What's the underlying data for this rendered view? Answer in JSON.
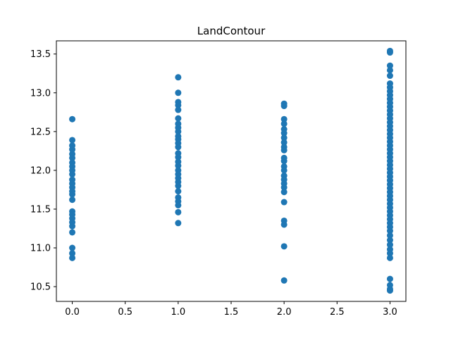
{
  "chart_data": {
    "type": "scatter",
    "title": "LandContour",
    "xlabel": "",
    "ylabel": "",
    "xlim": [
      -0.15,
      3.15
    ],
    "ylim": [
      10.31,
      13.67
    ],
    "grid": false,
    "color": "#1f77b4",
    "xticks": [
      {
        "value": 0.0,
        "label": "0.0"
      },
      {
        "value": 0.5,
        "label": "0.5"
      },
      {
        "value": 1.0,
        "label": "1.0"
      },
      {
        "value": 1.5,
        "label": "1.5"
      },
      {
        "value": 2.0,
        "label": "2.0"
      },
      {
        "value": 2.5,
        "label": "2.5"
      },
      {
        "value": 3.0,
        "label": "3.0"
      }
    ],
    "yticks": [
      {
        "value": 10.5,
        "label": "10.5"
      },
      {
        "value": 11.0,
        "label": "11.0"
      },
      {
        "value": 11.5,
        "label": "11.5"
      },
      {
        "value": 12.0,
        "label": "12.0"
      },
      {
        "value": 12.5,
        "label": "12.5"
      },
      {
        "value": 13.0,
        "label": "13.0"
      },
      {
        "value": 13.5,
        "label": "13.5"
      }
    ],
    "series": [
      {
        "values": [
          {
            "x": 0,
            "y": 12.66
          },
          {
            "x": 0,
            "y": 12.39
          },
          {
            "x": 0,
            "y": 12.32
          },
          {
            "x": 0,
            "y": 12.27
          },
          {
            "x": 0,
            "y": 12.21
          },
          {
            "x": 0,
            "y": 12.16
          },
          {
            "x": 0,
            "y": 12.1
          },
          {
            "x": 0,
            "y": 12.05
          },
          {
            "x": 0,
            "y": 12.0
          },
          {
            "x": 0,
            "y": 11.95
          },
          {
            "x": 0,
            "y": 11.88
          },
          {
            "x": 0,
            "y": 11.83
          },
          {
            "x": 0,
            "y": 11.78
          },
          {
            "x": 0,
            "y": 11.73
          },
          {
            "x": 0,
            "y": 11.69
          },
          {
            "x": 0,
            "y": 11.62
          },
          {
            "x": 0,
            "y": 11.47
          },
          {
            "x": 0,
            "y": 11.43
          },
          {
            "x": 0,
            "y": 11.38
          },
          {
            "x": 0,
            "y": 11.33
          },
          {
            "x": 0,
            "y": 11.28
          },
          {
            "x": 0,
            "y": 11.2
          },
          {
            "x": 0,
            "y": 11.0
          },
          {
            "x": 0,
            "y": 10.93
          },
          {
            "x": 0,
            "y": 10.87
          },
          {
            "x": 1,
            "y": 13.2
          },
          {
            "x": 1,
            "y": 13.0
          },
          {
            "x": 1,
            "y": 12.88
          },
          {
            "x": 1,
            "y": 12.84
          },
          {
            "x": 1,
            "y": 12.78
          },
          {
            "x": 1,
            "y": 12.67
          },
          {
            "x": 1,
            "y": 12.6
          },
          {
            "x": 1,
            "y": 12.55
          },
          {
            "x": 1,
            "y": 12.5
          },
          {
            "x": 1,
            "y": 12.44
          },
          {
            "x": 1,
            "y": 12.4
          },
          {
            "x": 1,
            "y": 12.35
          },
          {
            "x": 1,
            "y": 12.3
          },
          {
            "x": 1,
            "y": 12.22
          },
          {
            "x": 1,
            "y": 12.17
          },
          {
            "x": 1,
            "y": 12.11
          },
          {
            "x": 1,
            "y": 12.06
          },
          {
            "x": 1,
            "y": 12.0
          },
          {
            "x": 1,
            "y": 11.95
          },
          {
            "x": 1,
            "y": 11.9
          },
          {
            "x": 1,
            "y": 11.85
          },
          {
            "x": 1,
            "y": 11.8
          },
          {
            "x": 1,
            "y": 11.73
          },
          {
            "x": 1,
            "y": 11.65
          },
          {
            "x": 1,
            "y": 11.6
          },
          {
            "x": 1,
            "y": 11.55
          },
          {
            "x": 1,
            "y": 11.46
          },
          {
            "x": 1,
            "y": 11.32
          },
          {
            "x": 2,
            "y": 12.86
          },
          {
            "x": 2,
            "y": 12.83
          },
          {
            "x": 2,
            "y": 12.66
          },
          {
            "x": 2,
            "y": 12.6
          },
          {
            "x": 2,
            "y": 12.53
          },
          {
            "x": 2,
            "y": 12.48
          },
          {
            "x": 2,
            "y": 12.42
          },
          {
            "x": 2,
            "y": 12.36
          },
          {
            "x": 2,
            "y": 12.3
          },
          {
            "x": 2,
            "y": 12.26
          },
          {
            "x": 2,
            "y": 12.16
          },
          {
            "x": 2,
            "y": 12.12
          },
          {
            "x": 2,
            "y": 12.05
          },
          {
            "x": 2,
            "y": 12.0
          },
          {
            "x": 2,
            "y": 11.93
          },
          {
            "x": 2,
            "y": 11.88
          },
          {
            "x": 2,
            "y": 11.83
          },
          {
            "x": 2,
            "y": 11.78
          },
          {
            "x": 2,
            "y": 11.72
          },
          {
            "x": 2,
            "y": 11.59
          },
          {
            "x": 2,
            "y": 11.35
          },
          {
            "x": 2,
            "y": 11.3
          },
          {
            "x": 2,
            "y": 11.02
          },
          {
            "x": 2,
            "y": 10.58
          },
          {
            "x": 3,
            "y": 13.54
          },
          {
            "x": 3,
            "y": 13.52
          },
          {
            "x": 3,
            "y": 13.35
          },
          {
            "x": 3,
            "y": 13.29
          },
          {
            "x": 3,
            "y": 13.22
          },
          {
            "x": 3,
            "y": 13.12
          },
          {
            "x": 3,
            "y": 13.07
          },
          {
            "x": 3,
            "y": 13.02
          },
          {
            "x": 3,
            "y": 12.97
          },
          {
            "x": 3,
            "y": 12.92
          },
          {
            "x": 3,
            "y": 12.87
          },
          {
            "x": 3,
            "y": 12.82
          },
          {
            "x": 3,
            "y": 12.77
          },
          {
            "x": 3,
            "y": 12.72
          },
          {
            "x": 3,
            "y": 12.67
          },
          {
            "x": 3,
            "y": 12.62
          },
          {
            "x": 3,
            "y": 12.57
          },
          {
            "x": 3,
            "y": 12.52
          },
          {
            "x": 3,
            "y": 12.47
          },
          {
            "x": 3,
            "y": 12.42
          },
          {
            "x": 3,
            "y": 12.37
          },
          {
            "x": 3,
            "y": 12.32
          },
          {
            "x": 3,
            "y": 12.27
          },
          {
            "x": 3,
            "y": 12.22
          },
          {
            "x": 3,
            "y": 12.17
          },
          {
            "x": 3,
            "y": 12.12
          },
          {
            "x": 3,
            "y": 12.07
          },
          {
            "x": 3,
            "y": 12.02
          },
          {
            "x": 3,
            "y": 11.97
          },
          {
            "x": 3,
            "y": 11.92
          },
          {
            "x": 3,
            "y": 11.87
          },
          {
            "x": 3,
            "y": 11.82
          },
          {
            "x": 3,
            "y": 11.77
          },
          {
            "x": 3,
            "y": 11.72
          },
          {
            "x": 3,
            "y": 11.67
          },
          {
            "x": 3,
            "y": 11.62
          },
          {
            "x": 3,
            "y": 11.57
          },
          {
            "x": 3,
            "y": 11.52
          },
          {
            "x": 3,
            "y": 11.47
          },
          {
            "x": 3,
            "y": 11.42
          },
          {
            "x": 3,
            "y": 11.37
          },
          {
            "x": 3,
            "y": 11.32
          },
          {
            "x": 3,
            "y": 11.27
          },
          {
            "x": 3,
            "y": 11.22
          },
          {
            "x": 3,
            "y": 11.16
          },
          {
            "x": 3,
            "y": 11.1
          },
          {
            "x": 3,
            "y": 11.04
          },
          {
            "x": 3,
            "y": 10.98
          },
          {
            "x": 3,
            "y": 10.93
          },
          {
            "x": 3,
            "y": 10.87
          },
          {
            "x": 3,
            "y": 10.6
          },
          {
            "x": 3,
            "y": 10.52
          },
          {
            "x": 3,
            "y": 10.47
          },
          {
            "x": 3,
            "y": 10.45
          }
        ]
      }
    ]
  }
}
